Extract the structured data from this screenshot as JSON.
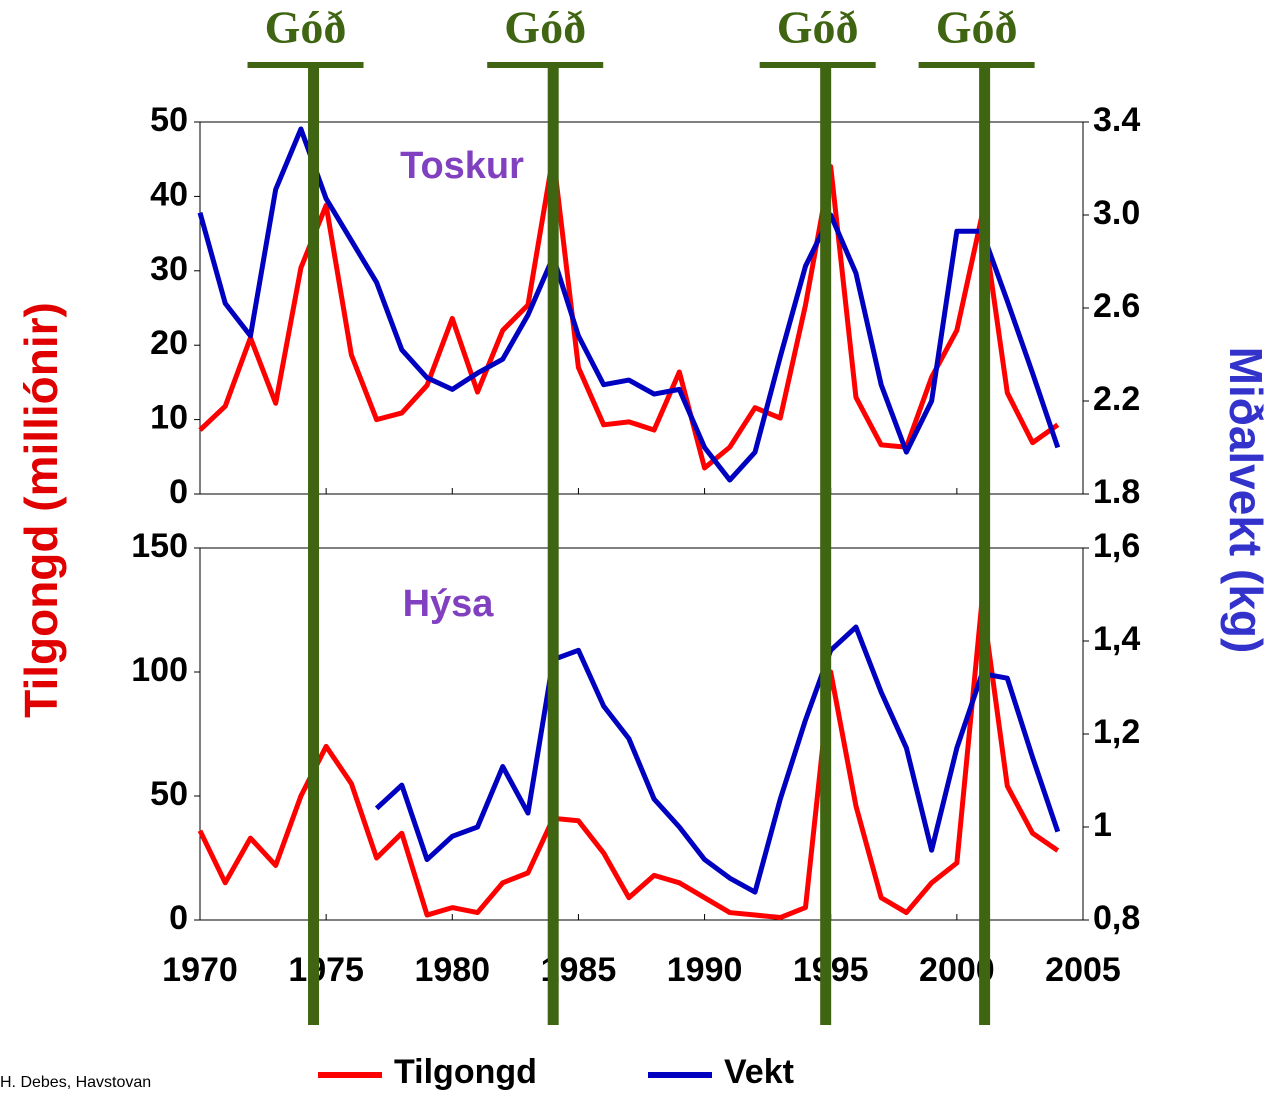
{
  "ylabel": "Tilgongd (milliónir)",
  "y2label": "Miðalvekt (kg)",
  "credit": "H. Debes, Havstovan",
  "annotations": [
    {
      "x": 1974.5,
      "label": "Góð"
    },
    {
      "x": 1984,
      "label": "Góð"
    },
    {
      "x": 1994.8,
      "label": "Góð"
    },
    {
      "x": 2001.1,
      "label": "Góð"
    }
  ],
  "annotation_color": "#3f6512",
  "chart_data": [
    {
      "type": "line",
      "title": "Toskur",
      "x": [
        1970,
        1971,
        1972,
        1973,
        1974,
        1975,
        1976,
        1977,
        1978,
        1979,
        1980,
        1981,
        1982,
        1983,
        1984,
        1985,
        1986,
        1987,
        1988,
        1989,
        1990,
        1991,
        1992,
        1993,
        1994,
        1995,
        1996,
        1997,
        1998,
        1999,
        2000,
        2001,
        2002,
        2003,
        2004
      ],
      "xlim": [
        1970,
        2005
      ],
      "ylim": [
        0,
        50
      ],
      "yticks": [
        0,
        10,
        20,
        30,
        40,
        50
      ],
      "y2lim": [
        1.8,
        3.4
      ],
      "y2ticks": [
        1.8,
        2.2,
        2.6,
        {
          "value": 3,
          "label": "3.0"
        },
        3.4
      ],
      "series": [
        {
          "name": "Tilgongd",
          "color": "#ff0000",
          "values": [
            8.6,
            11.8,
            21,
            12.2,
            30.4,
            38.8,
            18.7,
            10,
            10.9,
            14.6,
            23.6,
            13.7,
            22,
            25.4,
            45.5,
            17,
            9.3,
            9.7,
            8.6,
            16.4,
            3.5,
            6.3,
            11.6,
            10.2,
            25.4,
            44,
            13,
            6.6,
            6.3,
            15.7,
            22,
            37.5,
            13.6,
            6.9,
            9.3
          ]
        },
        {
          "name": "Vekt",
          "color": "#0000c0",
          "axis": "y2",
          "values": [
            3.01,
            2.62,
            2.48,
            3.11,
            3.37,
            3.07,
            2.89,
            2.71,
            2.42,
            2.3,
            2.25,
            2.32,
            2.38,
            2.57,
            2.82,
            2.48,
            2.27,
            2.29,
            2.23,
            2.25,
            2.0,
            1.86,
            1.98,
            2.39,
            2.78,
            3.0,
            2.75,
            2.27,
            1.98,
            2.2,
            2.93,
            2.93,
            2.63,
            2.32,
            2.0
          ]
        }
      ]
    },
    {
      "type": "line",
      "title": "Hýsa",
      "x": [
        1970,
        1971,
        1972,
        1973,
        1974,
        1975,
        1976,
        1977,
        1978,
        1979,
        1980,
        1981,
        1982,
        1983,
        1984,
        1985,
        1986,
        1987,
        1988,
        1989,
        1990,
        1991,
        1992,
        1993,
        1994,
        1995,
        1996,
        1997,
        1998,
        1999,
        2000,
        2001,
        2002,
        2003,
        2004
      ],
      "xlim": [
        1970,
        2005
      ],
      "xticks": [
        1970,
        1975,
        1980,
        1985,
        1990,
        1995,
        2000,
        2005
      ],
      "ylim": [
        0,
        150
      ],
      "yticks": [
        0,
        50,
        100,
        150
      ],
      "y2lim": [
        0.8,
        1.6
      ],
      "y2ticks": [
        {
          "value": 0.8,
          "label": "0,8"
        },
        1,
        {
          "value": 1.2,
          "label": "1,2"
        },
        {
          "value": 1.4,
          "label": "1,4"
        },
        {
          "value": 1.6,
          "label": "1,6"
        }
      ],
      "series": [
        {
          "color": "#ff0000",
          "values": [
            36,
            15,
            33,
            22,
            50,
            70,
            55,
            25,
            35,
            2,
            5,
            3,
            15,
            19,
            41,
            40,
            27,
            9,
            18,
            15,
            9,
            3,
            2,
            1,
            5,
            100,
            46,
            9,
            3,
            15,
            23,
            129,
            54,
            35,
            28
          ]
        },
        {
          "color": "#0000c0",
          "axis": "y2",
          "values": [
            null,
            null,
            null,
            null,
            null,
            null,
            null,
            1.04,
            1.09,
            0.93,
            0.98,
            1.0,
            1.13,
            1.03,
            1.36,
            1.38,
            1.26,
            1.19,
            1.06,
            1.0,
            0.93,
            0.89,
            0.86,
            1.06,
            1.23,
            1.38,
            1.43,
            1.29,
            1.17,
            0.95,
            1.17,
            1.33,
            1.32,
            1.15,
            0.99
          ]
        }
      ]
    }
  ]
}
